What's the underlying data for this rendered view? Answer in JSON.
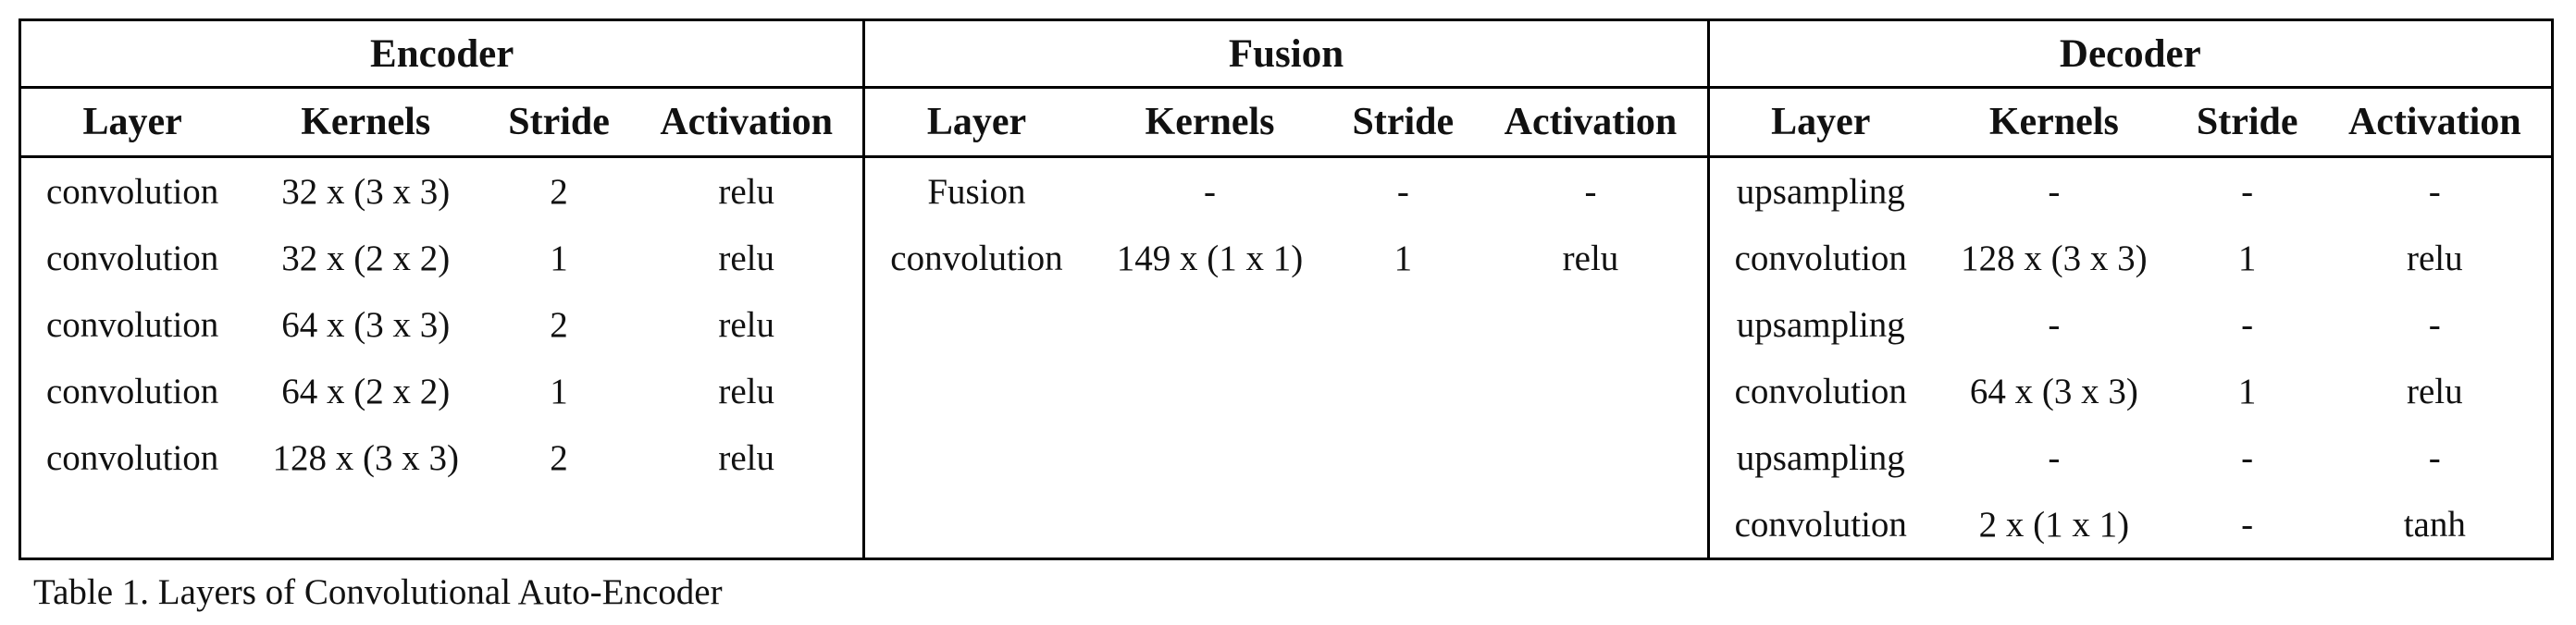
{
  "table": {
    "groups": [
      "Encoder",
      "Fusion",
      "Decoder"
    ],
    "columns": [
      "Layer",
      "Kernels",
      "Stride",
      "Activation"
    ],
    "encoder": [
      [
        "convolution",
        "32 x (3 x 3)",
        "2",
        "relu"
      ],
      [
        "convolution",
        "32 x (2 x 2)",
        "1",
        "relu"
      ],
      [
        "convolution",
        "64 x (3 x 3)",
        "2",
        "relu"
      ],
      [
        "convolution",
        "64 x (2 x 2)",
        "1",
        "relu"
      ],
      [
        "convolution",
        "128 x (3 x 3)",
        "2",
        "relu"
      ],
      [
        "",
        "",
        "",
        ""
      ]
    ],
    "fusion": [
      [
        "Fusion",
        "-",
        "-",
        "-"
      ],
      [
        "convolution",
        "149 x (1 x 1)",
        "1",
        "relu"
      ],
      [
        "",
        "",
        "",
        ""
      ],
      [
        "",
        "",
        "",
        ""
      ],
      [
        "",
        "",
        "",
        ""
      ],
      [
        "",
        "",
        "",
        ""
      ]
    ],
    "decoder": [
      [
        "upsampling",
        "-",
        "-",
        "-"
      ],
      [
        "convolution",
        "128 x (3 x 3)",
        "1",
        "relu"
      ],
      [
        "upsampling",
        "-",
        "-",
        "-"
      ],
      [
        "convolution",
        "64 x (3 x 3)",
        "1",
        "relu"
      ],
      [
        "upsampling",
        "-",
        "-",
        "-"
      ],
      [
        "convolution",
        "2 x (1 x 1)",
        "-",
        "tanh"
      ]
    ]
  },
  "caption": "Table 1. Layers of Convolutional Auto-Encoder"
}
